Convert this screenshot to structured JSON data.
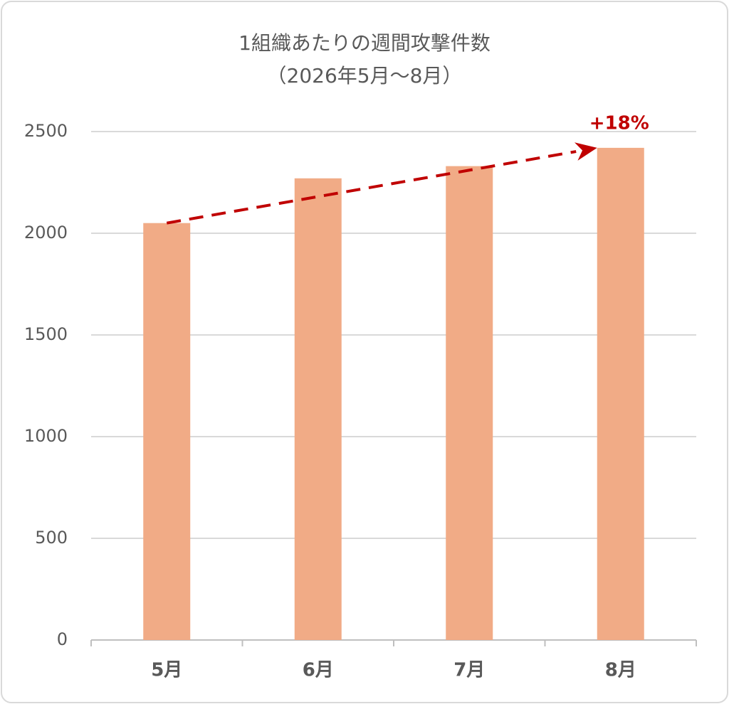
{
  "chart_data": {
    "type": "bar",
    "title": "1組織あたりの週間攻撃件数",
    "subtitle": "（2026年5月～8月）",
    "categories": [
      "5月",
      "6月",
      "7月",
      "8月"
    ],
    "values": [
      2050,
      2270,
      2330,
      2420
    ],
    "color": "#f1ab86",
    "ylim": [
      0,
      2500
    ],
    "yticks": [
      0,
      500,
      1000,
      1500,
      2000,
      2500
    ],
    "grid": true,
    "annotation": "+18%",
    "annotation_color": "#c00000"
  }
}
